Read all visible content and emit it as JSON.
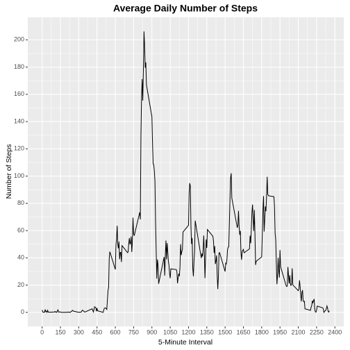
{
  "chart_data": {
    "type": "line",
    "title": "Average Daily Number of Steps",
    "xlabel": "5-Minute Interval",
    "ylabel": "Number of Steps",
    "x": [
      0,
      5,
      10,
      15,
      20,
      25,
      30,
      35,
      40,
      45,
      50,
      55,
      100,
      105,
      110,
      115,
      120,
      125,
      130,
      135,
      140,
      145,
      150,
      155,
      200,
      215,
      230,
      250,
      255,
      300,
      320,
      330,
      350,
      410,
      420,
      430,
      440,
      445,
      450,
      455,
      500,
      505,
      510,
      520,
      530,
      540,
      545,
      550,
      555,
      600,
      605,
      610,
      615,
      620,
      625,
      630,
      635,
      640,
      645,
      650,
      655,
      700,
      705,
      710,
      715,
      720,
      725,
      730,
      735,
      740,
      745,
      750,
      755,
      800,
      805,
      810,
      815,
      820,
      825,
      830,
      835,
      840,
      845,
      850,
      855,
      900,
      905,
      910,
      915,
      920,
      925,
      930,
      935,
      940,
      945,
      950,
      955,
      1000,
      1005,
      1010,
      1015,
      1020,
      1025,
      1030,
      1035,
      1040,
      1045,
      1050,
      1055,
      1100,
      1105,
      1110,
      1115,
      1120,
      1125,
      1130,
      1135,
      1140,
      1145,
      1150,
      1155,
      1200,
      1205,
      1210,
      1215,
      1220,
      1225,
      1230,
      1235,
      1240,
      1245,
      1250,
      1255,
      1300,
      1305,
      1310,
      1315,
      1320,
      1325,
      1330,
      1335,
      1340,
      1345,
      1350,
      1355,
      1400,
      1405,
      1410,
      1415,
      1420,
      1425,
      1430,
      1435,
      1440,
      1445,
      1450,
      1455,
      1500,
      1505,
      1510,
      1515,
      1520,
      1525,
      1530,
      1535,
      1540,
      1545,
      1550,
      1555,
      1600,
      1605,
      1610,
      1615,
      1620,
      1625,
      1630,
      1635,
      1640,
      1645,
      1650,
      1655,
      1700,
      1705,
      1710,
      1715,
      1720,
      1725,
      1730,
      1735,
      1740,
      1745,
      1750,
      1755,
      1800,
      1805,
      1810,
      1815,
      1820,
      1825,
      1830,
      1835,
      1840,
      1845,
      1850,
      1855,
      1900,
      1905,
      1910,
      1915,
      1920,
      1925,
      1930,
      1935,
      1940,
      1945,
      1950,
      1955,
      2000,
      2005,
      2010,
      2015,
      2020,
      2025,
      2030,
      2035,
      2040,
      2045,
      2050,
      2055,
      2100,
      2105,
      2110,
      2115,
      2120,
      2125,
      2130,
      2135,
      2140,
      2145,
      2150,
      2155,
      2200,
      2205,
      2210,
      2215,
      2220,
      2225,
      2230,
      2235,
      2240,
      2245,
      2250,
      2255,
      2300,
      2305,
      2310,
      2315,
      2320,
      2325,
      2330,
      2335,
      2340,
      2345,
      2350,
      2355
    ],
    "values": [
      1.7,
      0.3,
      0.1,
      0.2,
      0.1,
      2.1,
      0.5,
      0.9,
      0,
      1.5,
      0.3,
      0.1,
      0.3,
      0.7,
      0.2,
      0.3,
      0,
      1.1,
      1.8,
      0.2,
      0.2,
      0.4,
      0.3,
      0,
      0,
      0.2,
      0,
      1.5,
      0.9,
      0,
      0.2,
      1.6,
      0.2,
      2.6,
      0.3,
      4.1,
      3.5,
      0.8,
      3.1,
      1.1,
      0,
      1.6,
      3,
      3.3,
      2.1,
      16,
      18.3,
      39.5,
      44.5,
      31.5,
      49.3,
      53.8,
      63.5,
      50,
      47,
      52,
      39,
      44,
      44,
      37,
      49,
      43.8,
      44.4,
      50.5,
      54.5,
      49.9,
      51,
      55.7,
      44.3,
      52.3,
      69.5,
      57.8,
      56.2,
      73.4,
      68.2,
      129.4,
      157.5,
      171.2,
      155.4,
      177.3,
      206.2,
      195.9,
      179.6,
      183.4,
      167,
      143.5,
      124,
      109.1,
      108.1,
      103.7,
      96,
      66.2,
      45.2,
      24.8,
      38.8,
      35,
      21,
      40.6,
      27,
      42,
      52.7,
      38.9,
      50.8,
      44.3,
      37.4,
      34.7,
      28.3,
      25.1,
      31.9,
      31.4,
      29.7,
      21.3,
      25.5,
      28.4,
      26.5,
      33.4,
      50,
      42,
      44.6,
      46,
      59,
      63.9,
      87.7,
      94.8,
      92.8,
      63.4,
      50.2,
      54.5,
      32.4,
      26.5,
      37.7,
      45,
      67.3,
      42.3,
      39.9,
      43.3,
      41,
      46.2,
      56.4,
      42.8,
      25.1,
      39.9,
      53.5,
      47.3,
      60.8,
      55.8,
      52,
      43.6,
      48.7,
      35.5,
      37.5,
      41.8,
      27.5,
      17.1,
      26.1,
      43.6,
      43.8,
      30,
      36.1,
      35.5,
      38.8,
      46,
      47.8,
      48.1,
      65.3,
      82.9,
      98.7,
      102.1,
      84,
      62.1,
      64.1,
      74.5,
      63.2,
      56.9,
      59.8,
      43.9,
      38.6,
      44.7,
      45.5,
      46.2,
      43.7,
      46.6,
      56.3,
      50.7,
      61.2,
      73.4,
      79.1,
      68.9,
      59.7,
      75.1,
      56.5,
      34.8,
      37.5,
      40.7,
      58,
      74.7,
      85.3,
      59.3,
      67.8,
      77.7,
      74.2,
      85.3,
      99.5,
      86.6,
      85.6,
      84.9,
      77.8,
      58,
      53.4,
      36.3,
      20.7,
      27.4,
      40,
      30.2,
      25.5,
      45.7,
      33.5,
      19.6,
      19,
      19.3,
      33.3,
      26.8,
      21.2,
      27.3,
      21.3,
      19.5,
      21.3,
      32.3,
      20.2,
      15.9,
      17.2,
      23.5,
      19.2,
      12.5,
      8,
      14.7,
      16.3,
      8.7,
      7.8,
      8.1,
      2.6,
      1.5,
      3.7,
      4.8,
      8.5,
      7.1,
      8.7,
      9.8,
      2.2,
      0.3,
      0.1,
      1.6,
      4.6,
      3.3,
      2.8,
      0,
      0.8,
      1,
      1.6,
      2.6,
      4.7,
      3.3,
      0.6,
      0.2,
      1.1
    ],
    "color": "#000000",
    "xlim": [
      -117.75,
      2472.75
    ],
    "ylim": [
      -10.3,
      216.5
    ],
    "xticks": [
      0,
      150,
      300,
      450,
      600,
      750,
      900,
      1050,
      1200,
      1350,
      1500,
      1650,
      1800,
      1950,
      2100,
      2250,
      2400
    ],
    "yticks": [
      0,
      20,
      40,
      60,
      80,
      100,
      120,
      140,
      160,
      180,
      200
    ],
    "grid": true
  }
}
